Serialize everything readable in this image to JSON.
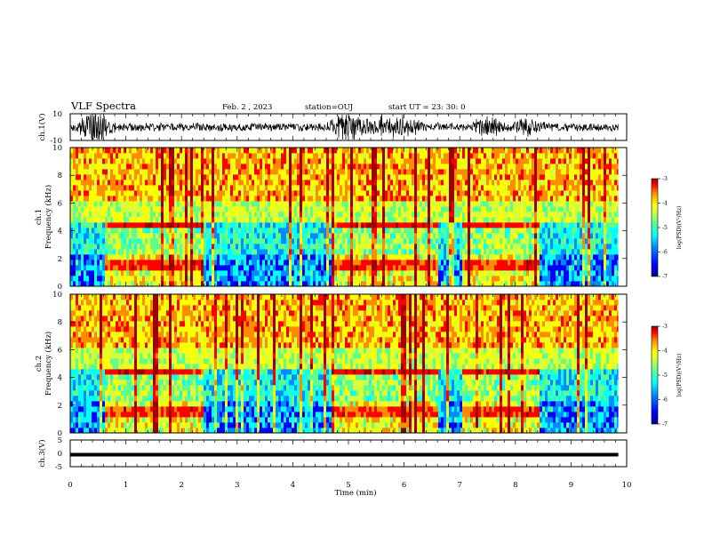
{
  "header": {
    "title": "VLF Spectra",
    "date": "Feb. 2 , 2023",
    "station": "station=OUJ",
    "start": "start UT =  23: 30: 0"
  },
  "colors": {
    "axis": "#000000",
    "waveform": "#000000",
    "colormap": [
      "#00008f",
      "#0000ff",
      "#008cff",
      "#00ffff",
      "#5cff8f",
      "#d4ff3a",
      "#ffff00",
      "#ff8c00",
      "#ff0000",
      "#9c0000"
    ]
  },
  "chart_data": [
    {
      "type": "line",
      "id": "ch1-waveform",
      "ylabel": "ch.1(V)",
      "ylim": [
        -10,
        10
      ],
      "yticks": [
        "10",
        "-10"
      ],
      "description_bursts": [
        0.4,
        0.5,
        4.9,
        5.1,
        5.6,
        6.0,
        7.5,
        8.2
      ]
    },
    {
      "type": "heatmap",
      "id": "ch1-spectrogram",
      "ylabel_channel": "ch.1",
      "ylabel_quantity": "Frequency (kHz)",
      "ylim": [
        0,
        10
      ],
      "yticks": [
        "0",
        "2",
        "4",
        "6",
        "8",
        "10"
      ],
      "colorbar": {
        "label": "log(PSD)(V²/Hz)",
        "ticks": [
          "-3",
          "-4",
          "-5",
          "-6",
          "-7"
        ],
        "range": [
          -7,
          -3
        ]
      },
      "quiet_segments_min": [
        [
          0.6,
          2.35
        ],
        [
          4.65,
          6.6
        ],
        [
          7.0,
          8.4
        ]
      ]
    },
    {
      "type": "heatmap",
      "id": "ch2-spectrogram",
      "ylabel_channel": "ch.2",
      "ylabel_quantity": "Frequency (kHz)",
      "ylim": [
        0,
        10
      ],
      "yticks": [
        "0",
        "2",
        "4",
        "6",
        "8",
        "10"
      ],
      "colorbar": {
        "label": "log(PSD)(V²/Hz)",
        "ticks": [
          "-3",
          "-4",
          "-5",
          "-6",
          "-7"
        ],
        "range": [
          -7,
          -3
        ]
      },
      "quiet_segments_min": [
        [
          0.6,
          2.35
        ],
        [
          4.65,
          6.6
        ],
        [
          7.0,
          8.4
        ]
      ]
    },
    {
      "type": "line",
      "id": "ch3-waveform",
      "ylabel": "ch.3(V)",
      "ylim": [
        -5,
        5
      ],
      "yticks": [
        "5",
        "0",
        "-5"
      ],
      "level": -0.5
    }
  ],
  "xaxis": {
    "label": "Time (min)",
    "ticks": [
      "0",
      "1",
      "2",
      "3",
      "4",
      "5",
      "6",
      "7",
      "8",
      "9",
      "10"
    ],
    "range": [
      0,
      10
    ],
    "data_end": 9.85
  }
}
